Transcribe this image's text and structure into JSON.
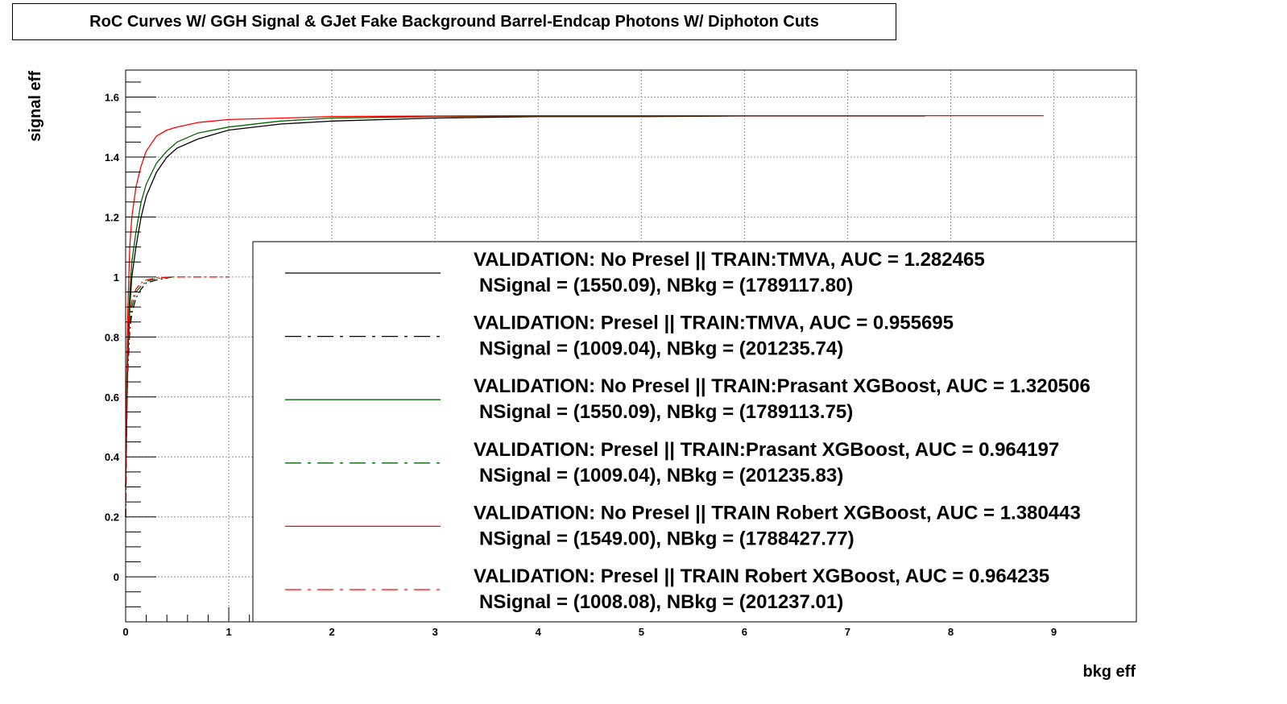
{
  "chart_data": {
    "type": "line",
    "title": "RoC Curves W/ GGH Signal & GJet Fake Background  Barrel-Endcap  Photons W/ Diphoton Cuts",
    "xlabel": "bkg eff",
    "ylabel": "signal eff",
    "xlim": [
      0,
      9.8
    ],
    "ylim": [
      -0.15,
      1.69
    ],
    "xticks": [
      0,
      1,
      2,
      3,
      4,
      5,
      6,
      7,
      8,
      9
    ],
    "xtick_labels": [
      "0",
      "1",
      "2",
      "3",
      "4",
      "5",
      "6",
      "7",
      "8",
      "9"
    ],
    "yticks": [
      0,
      0.2,
      0.4,
      0.6,
      0.8,
      1,
      1.2,
      1.4,
      1.6
    ],
    "ytick_labels": [
      "0",
      "0.2",
      "0.4",
      "0.6",
      "0.8",
      "1",
      "1.2",
      "1.4",
      "1.6"
    ],
    "grid": true,
    "legend_position": "lower-right",
    "series": [
      {
        "name": "VALIDATION: No Presel || TRAIN:TMVA, AUC = 1.282465",
        "subtitle": "NSignal = (1550.09), NBkg = (1789117.80)",
        "color": "#000000",
        "dash": "solid",
        "x": [
          0,
          0.02,
          0.04,
          0.06,
          0.1,
          0.15,
          0.2,
          0.3,
          0.4,
          0.5,
          0.7,
          1.0,
          1.5,
          2.0,
          3.0,
          4.0,
          5.0,
          6.0,
          7.0,
          7.75
        ],
        "y": [
          0.3,
          0.72,
          0.9,
          1.0,
          1.1,
          1.2,
          1.27,
          1.35,
          1.4,
          1.43,
          1.46,
          1.49,
          1.51,
          1.52,
          1.53,
          1.535,
          1.535,
          1.537,
          1.537,
          1.537
        ]
      },
      {
        "name": "VALIDATION: Presel || TRAIN:TMVA, AUC = 0.955695",
        "subtitle": "NSignal = (1009.04), NBkg = (201235.74)",
        "color": "#000000",
        "dash": "dashdot",
        "x": [
          0,
          0.01,
          0.02,
          0.04,
          0.06,
          0.1,
          0.15,
          0.2,
          0.3,
          0.45
        ],
        "y": [
          0.2,
          0.5,
          0.68,
          0.82,
          0.88,
          0.93,
          0.96,
          0.98,
          0.99,
          1.0
        ]
      },
      {
        "name": "VALIDATION: No Presel || TRAIN:Prasant XGBoost, AUC = 1.320506",
        "subtitle": "NSignal = (1550.09), NBkg = (1789113.75)",
        "color": "#006400",
        "dash": "solid",
        "x": [
          0,
          0.02,
          0.04,
          0.06,
          0.1,
          0.15,
          0.2,
          0.3,
          0.4,
          0.5,
          0.7,
          1.0,
          1.5,
          2.0,
          3.0,
          4.0,
          5.0,
          6.0,
          7.0,
          7.75
        ],
        "y": [
          0.3,
          0.78,
          0.95,
          1.05,
          1.15,
          1.25,
          1.31,
          1.38,
          1.42,
          1.45,
          1.48,
          1.5,
          1.52,
          1.53,
          1.535,
          1.537,
          1.537,
          1.538,
          1.538,
          1.538
        ]
      },
      {
        "name": "VALIDATION: Presel || TRAIN:Prasant XGBoost, AUC = 0.964197",
        "subtitle": "NSignal = (1009.04), NBkg = (201235.83)",
        "color": "#006400",
        "dash": "dashdot",
        "x": [
          0,
          0.01,
          0.02,
          0.04,
          0.06,
          0.1,
          0.15,
          0.2,
          0.3,
          0.45
        ],
        "y": [
          0.2,
          0.55,
          0.72,
          0.85,
          0.9,
          0.95,
          0.97,
          0.985,
          0.995,
          1.0
        ]
      },
      {
        "name": "VALIDATION: No Presel || TRAIN Robert XGBoost, AUC = 1.380443",
        "subtitle": "NSignal = (1549.00), NBkg = (1788427.77)",
        "color": "#ff0000",
        "dash": "solid",
        "x": [
          0,
          0.01,
          0.02,
          0.04,
          0.06,
          0.1,
          0.15,
          0.2,
          0.3,
          0.4,
          0.5,
          0.7,
          1.0,
          1.5,
          2.0,
          3.0,
          4.0,
          6.0,
          8.0,
          8.9
        ],
        "y": [
          0.3,
          0.65,
          0.88,
          1.1,
          1.2,
          1.3,
          1.37,
          1.42,
          1.47,
          1.49,
          1.5,
          1.515,
          1.525,
          1.53,
          1.535,
          1.537,
          1.538,
          1.538,
          1.538,
          1.538
        ]
      },
      {
        "name": "VALIDATION: Presel || TRAIN Robert XGBoost, AUC = 0.964235",
        "subtitle": "NSignal = (1008.08), NBkg = (201237.01)",
        "color": "#ff0000",
        "dash": "dashdot",
        "x": [
          0,
          0.01,
          0.02,
          0.04,
          0.06,
          0.1,
          0.15,
          0.2,
          0.3,
          0.45,
          0.7,
          1.0
        ],
        "y": [
          0.2,
          0.58,
          0.75,
          0.87,
          0.92,
          0.96,
          0.98,
          0.99,
          0.997,
          1.0,
          1.0,
          1.0
        ]
      }
    ]
  }
}
